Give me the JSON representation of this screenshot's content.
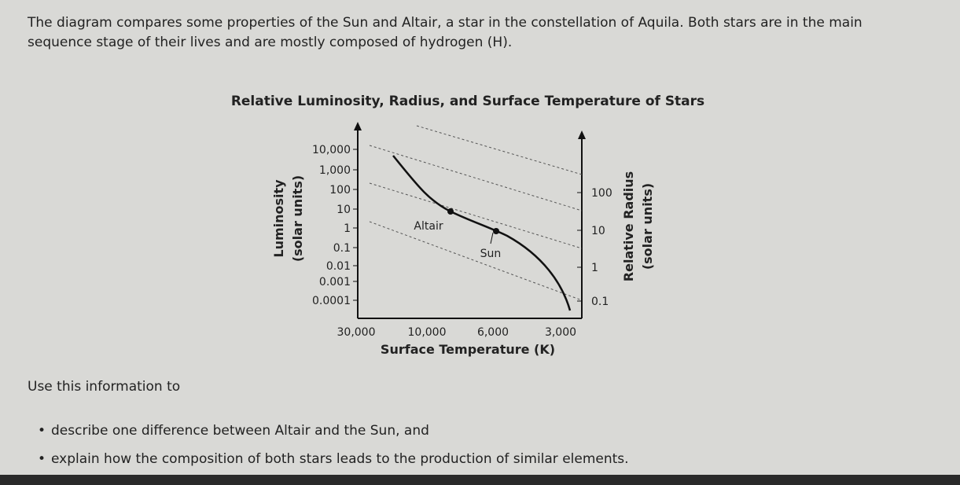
{
  "intro": "The diagram compares some properties of the Sun and Altair, a star in the constellation of Aquila. Both stars are in the main sequence stage of their lives and are mostly composed of hydrogen (H).",
  "figure": {
    "title": "Relative Luminosity, Radius, and Surface Temperature of Stars",
    "y_axis_label": "Luminosity",
    "y_axis_unit": "(solar units)",
    "y_ticks": [
      "10,000",
      "1,000",
      "100",
      "10",
      "1",
      "0.1",
      "0.01",
      "0.001",
      "0.0001"
    ],
    "x_axis_label": "Surface Temperature (K)",
    "x_ticks": [
      "30,000",
      "10,000",
      "6,000",
      "3,000"
    ],
    "y2_axis_label": "Relative Radius",
    "y2_axis_unit": "(solar units)",
    "y2_ticks": [
      "100",
      "10",
      "1",
      "0.1"
    ],
    "stars": [
      "Altair",
      "Sun"
    ]
  },
  "prompt": "Use this information to",
  "tasks": [
    "describe one difference between Altair and the Sun, and",
    "explain how the composition of both stars leads to the production of similar elements."
  ]
}
